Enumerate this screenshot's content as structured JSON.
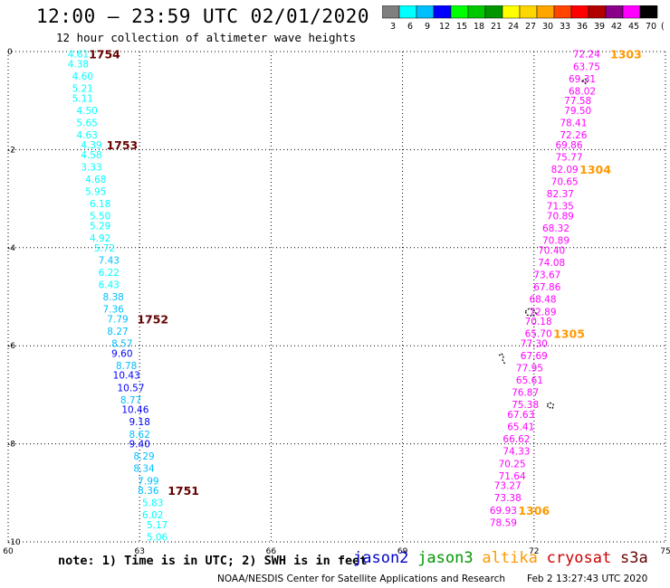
{
  "header": {
    "title": "12:00 – 23:59 UTC 02/01/2020",
    "subtitle": "12 hour collection of altimeter wave heights"
  },
  "colorbar": {
    "labels": [
      "3",
      "6",
      "9",
      "12",
      "15",
      "18",
      "21",
      "24",
      "27",
      "30",
      "33",
      "36",
      "39",
      "42",
      "45",
      "70"
    ],
    "unit": "(ft)",
    "colors": [
      "#7f7f7f",
      "#00ffff",
      "#00bfff",
      "#0000ff",
      "#00ff00",
      "#00c800",
      "#009600",
      "#ffff00",
      "#ffd700",
      "#ffa500",
      "#ff4500",
      "#ff0000",
      "#b20000",
      "#8b008b",
      "#ff00ff",
      "#000000"
    ]
  },
  "footer": {
    "note": "note:  1) Time is in UTC;  2) SWH is in feet",
    "missions": [
      {
        "name": "jason2",
        "color": "#0000cc"
      },
      {
        "name": "jason3",
        "color": "#009900"
      },
      {
        "name": "altika",
        "color": "#ff9900"
      },
      {
        "name": "cryosat",
        "color": "#cc0000"
      },
      {
        "name": "s3a",
        "color": "#660000"
      }
    ],
    "credit": "NOAA/NESDIS Center for Satellite Applications and Research",
    "date": "Feb  2 13:27:43 UTC 2020"
  },
  "chart_data": {
    "type": "scatter",
    "title": "12:00 – 23:59 UTC 02/01/2020",
    "subtitle": "12 hour collection of altimeter wave heights",
    "xlim": [
      60,
      75
    ],
    "ylim": [
      -10,
      0
    ],
    "x_ticks": [
      "60",
      "63",
      "66",
      "69",
      "72",
      "75"
    ],
    "y_ticks": [
      "0",
      "-2",
      "-4",
      "-6",
      "-8",
      "-10"
    ],
    "grid": true,
    "series": [
      {
        "name": "s3a",
        "color_note": "colored by wave height",
        "points": [
          {
            "x": 61.6,
            "y": -0.05,
            "v": "4.61",
            "c": "#00ffff"
          },
          {
            "x": 61.6,
            "y": -0.25,
            "v": "4.38",
            "c": "#00ffff"
          },
          {
            "x": 61.7,
            "y": -0.5,
            "v": "4.60",
            "c": "#00ffff"
          },
          {
            "x": 61.7,
            "y": -0.75,
            "v": "5.21",
            "c": "#00ffff"
          },
          {
            "x": 61.7,
            "y": -0.95,
            "v": "5.11",
            "c": "#00ffff"
          },
          {
            "x": 61.8,
            "y": -1.2,
            "v": "4.50",
            "c": "#00ffff"
          },
          {
            "x": 61.8,
            "y": -1.45,
            "v": "5.65",
            "c": "#00ffff"
          },
          {
            "x": 61.8,
            "y": -1.7,
            "v": "4.63",
            "c": "#00ffff"
          },
          {
            "x": 61.9,
            "y": -1.9,
            "v": "4.39",
            "c": "#00ffff"
          },
          {
            "x": 61.9,
            "y": -2.1,
            "v": "4.58",
            "c": "#00ffff"
          },
          {
            "x": 61.9,
            "y": -2.35,
            "v": "3.33",
            "c": "#00ffff"
          },
          {
            "x": 62.0,
            "y": -2.6,
            "v": "4.68",
            "c": "#00ffff"
          },
          {
            "x": 62.0,
            "y": -2.85,
            "v": "5.95",
            "c": "#00ffff"
          },
          {
            "x": 62.1,
            "y": -3.1,
            "v": "6.18",
            "c": "#00ffff"
          },
          {
            "x": 62.1,
            "y": -3.35,
            "v": "5.50",
            "c": "#00ffff"
          },
          {
            "x": 62.1,
            "y": -3.55,
            "v": "5.29",
            "c": "#00ffff"
          },
          {
            "x": 62.1,
            "y": -3.8,
            "v": "4.92",
            "c": "#00ffff"
          },
          {
            "x": 62.2,
            "y": -4.0,
            "v": "5.72",
            "c": "#00ffff"
          },
          {
            "x": 62.3,
            "y": -4.25,
            "v": "7.43",
            "c": "#00bfff"
          },
          {
            "x": 62.3,
            "y": -4.5,
            "v": "6.22",
            "c": "#00ffff"
          },
          {
            "x": 62.3,
            "y": -4.75,
            "v": "6.43",
            "c": "#00ffff"
          },
          {
            "x": 62.4,
            "y": -5.0,
            "v": "8.38",
            "c": "#00bfff"
          },
          {
            "x": 62.4,
            "y": -5.25,
            "v": "7.36",
            "c": "#00bfff"
          },
          {
            "x": 62.5,
            "y": -5.45,
            "v": "7.79",
            "c": "#00bfff"
          },
          {
            "x": 62.5,
            "y": -5.7,
            "v": "8.27",
            "c": "#00bfff"
          },
          {
            "x": 62.6,
            "y": -5.95,
            "v": "8.57",
            "c": "#00bfff"
          },
          {
            "x": 62.6,
            "y": -6.15,
            "v": "9.60",
            "c": "#0000ff"
          },
          {
            "x": 62.7,
            "y": -6.4,
            "v": "8.78",
            "c": "#00bfff"
          },
          {
            "x": 62.7,
            "y": -6.6,
            "v": "10.43",
            "c": "#0000ff"
          },
          {
            "x": 62.8,
            "y": -6.85,
            "v": "10.57",
            "c": "#0000ff"
          },
          {
            "x": 62.8,
            "y": -7.1,
            "v": "8.77",
            "c": "#00bfff"
          },
          {
            "x": 62.9,
            "y": -7.3,
            "v": "10.46",
            "c": "#0000ff"
          },
          {
            "x": 63.0,
            "y": -7.55,
            "v": "9.18",
            "c": "#0000ff"
          },
          {
            "x": 63.0,
            "y": -7.8,
            "v": "8.62",
            "c": "#00bfff"
          },
          {
            "x": 63.0,
            "y": -8.0,
            "v": "9.40",
            "c": "#0000ff"
          },
          {
            "x": 63.1,
            "y": -8.25,
            "v": "8.29",
            "c": "#00bfff"
          },
          {
            "x": 63.1,
            "y": -8.5,
            "v": "8.34",
            "c": "#00bfff"
          },
          {
            "x": 63.2,
            "y": -8.75,
            "v": "7.99",
            "c": "#00bfff"
          },
          {
            "x": 63.2,
            "y": -8.95,
            "v": "8.36",
            "c": "#00bfff"
          },
          {
            "x": 63.3,
            "y": -9.2,
            "v": "5.83",
            "c": "#00ffff"
          },
          {
            "x": 63.3,
            "y": -9.45,
            "v": "6.02",
            "c": "#00ffff"
          },
          {
            "x": 63.4,
            "y": -9.65,
            "v": "5.17",
            "c": "#00ffff"
          },
          {
            "x": 63.4,
            "y": -9.9,
            "v": "5.06",
            "c": "#00ffff"
          }
        ],
        "time_labels": [
          {
            "x": 62.2,
            "y": -0.05,
            "t": "1754"
          },
          {
            "x": 62.6,
            "y": -1.9,
            "t": "1753"
          },
          {
            "x": 63.3,
            "y": -5.45,
            "t": "1752"
          },
          {
            "x": 64.0,
            "y": -8.95,
            "t": "1751"
          }
        ]
      },
      {
        "name": "altika",
        "color_note": "colored by wave height",
        "points": [
          {
            "x": 73.2,
            "y": -0.05,
            "v": "72.24",
            "c": "#ff00ff"
          },
          {
            "x": 73.2,
            "y": -0.3,
            "v": "63.75",
            "c": "#ff00ff"
          },
          {
            "x": 73.1,
            "y": -0.55,
            "v": "69.31",
            "c": "#ff00ff"
          },
          {
            "x": 73.1,
            "y": -0.8,
            "v": "68.02",
            "c": "#ff00ff"
          },
          {
            "x": 73.0,
            "y": -1.0,
            "v": "77.58",
            "c": "#ff00ff"
          },
          {
            "x": 73.0,
            "y": -1.2,
            "v": "79.50",
            "c": "#ff00ff"
          },
          {
            "x": 72.9,
            "y": -1.45,
            "v": "78.41",
            "c": "#ff00ff"
          },
          {
            "x": 72.9,
            "y": -1.7,
            "v": "72.26",
            "c": "#ff00ff"
          },
          {
            "x": 72.8,
            "y": -1.9,
            "v": "69.86",
            "c": "#ff00ff"
          },
          {
            "x": 72.8,
            "y": -2.15,
            "v": "75.77",
            "c": "#ff00ff"
          },
          {
            "x": 72.7,
            "y": -2.4,
            "v": "82.09",
            "c": "#ff00ff"
          },
          {
            "x": 72.7,
            "y": -2.65,
            "v": "70.65",
            "c": "#ff00ff"
          },
          {
            "x": 72.6,
            "y": -2.9,
            "v": "82.37",
            "c": "#ff00ff"
          },
          {
            "x": 72.6,
            "y": -3.15,
            "v": "71.35",
            "c": "#ff00ff"
          },
          {
            "x": 72.6,
            "y": -3.35,
            "v": "70.89",
            "c": "#ff00ff"
          },
          {
            "x": 72.5,
            "y": -3.6,
            "v": "68.32",
            "c": "#ff00ff"
          },
          {
            "x": 72.5,
            "y": -3.85,
            "v": "70.89",
            "c": "#ff00ff"
          },
          {
            "x": 72.4,
            "y": -4.05,
            "v": "70.40",
            "c": "#ff00ff"
          },
          {
            "x": 72.4,
            "y": -4.3,
            "v": "74.08",
            "c": "#ff00ff"
          },
          {
            "x": 72.3,
            "y": -4.55,
            "v": "73.67",
            "c": "#ff00ff"
          },
          {
            "x": 72.3,
            "y": -4.8,
            "v": "67.86",
            "c": "#ff00ff"
          },
          {
            "x": 72.2,
            "y": -5.05,
            "v": "68.48",
            "c": "#ff00ff"
          },
          {
            "x": 72.2,
            "y": -5.3,
            "v": "72.89",
            "c": "#ff00ff"
          },
          {
            "x": 72.1,
            "y": -5.5,
            "v": "70.18",
            "c": "#ff00ff"
          },
          {
            "x": 72.1,
            "y": -5.75,
            "v": "65.70",
            "c": "#ff00ff"
          },
          {
            "x": 72.0,
            "y": -5.95,
            "v": "77.30",
            "c": "#ff00ff"
          },
          {
            "x": 72.0,
            "y": -6.2,
            "v": "67.69",
            "c": "#ff00ff"
          },
          {
            "x": 71.9,
            "y": -6.45,
            "v": "77.95",
            "c": "#ff00ff"
          },
          {
            "x": 71.9,
            "y": -6.7,
            "v": "65.61",
            "c": "#ff00ff"
          },
          {
            "x": 71.8,
            "y": -6.95,
            "v": "76.87",
            "c": "#ff00ff"
          },
          {
            "x": 71.8,
            "y": -7.2,
            "v": "75.38",
            "c": "#ff00ff"
          },
          {
            "x": 71.7,
            "y": -7.4,
            "v": "67.63",
            "c": "#ff00ff"
          },
          {
            "x": 71.7,
            "y": -7.65,
            "v": "65.41",
            "c": "#ff00ff"
          },
          {
            "x": 71.6,
            "y": -7.9,
            "v": "66.62",
            "c": "#ff00ff"
          },
          {
            "x": 71.6,
            "y": -8.15,
            "v": "74.33",
            "c": "#ff00ff"
          },
          {
            "x": 71.5,
            "y": -8.4,
            "v": "70.25",
            "c": "#ff00ff"
          },
          {
            "x": 71.5,
            "y": -8.65,
            "v": "71.64",
            "c": "#ff00ff"
          },
          {
            "x": 71.4,
            "y": -8.85,
            "v": "73.27",
            "c": "#ff00ff"
          },
          {
            "x": 71.4,
            "y": -9.1,
            "v": "73.38",
            "c": "#ff00ff"
          },
          {
            "x": 71.3,
            "y": -9.35,
            "v": "69.93",
            "c": "#ff00ff"
          },
          {
            "x": 71.3,
            "y": -9.6,
            "v": "78.59",
            "c": "#ff00ff"
          }
        ],
        "time_labels": [
          {
            "x": 74.1,
            "y": -0.05,
            "t": "1303"
          },
          {
            "x": 73.4,
            "y": -2.4,
            "t": "1304"
          },
          {
            "x": 72.8,
            "y": -5.75,
            "t": "1305"
          },
          {
            "x": 72.0,
            "y": -9.35,
            "t": "1306"
          }
        ]
      }
    ]
  }
}
